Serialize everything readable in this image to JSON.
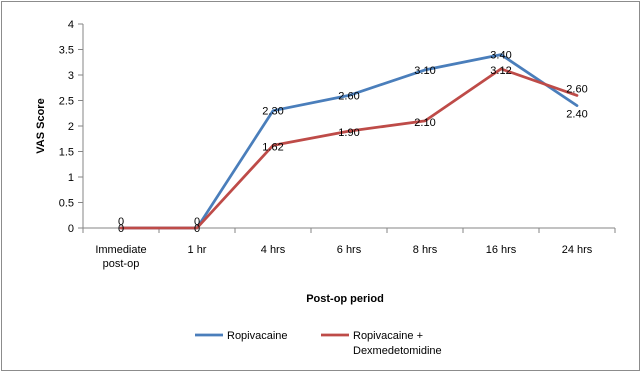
{
  "chart_data": {
    "type": "line",
    "categories": [
      [
        "Immediate",
        "post-op"
      ],
      [
        "1 hr"
      ],
      [
        "4 hrs"
      ],
      [
        "6 hrs"
      ],
      [
        "8 hrs"
      ],
      [
        "16 hrs"
      ],
      [
        "24 hrs"
      ]
    ],
    "series": [
      {
        "name": "Ropivacaine",
        "color": "#4A7EBB",
        "values": [
          0,
          0,
          2.3,
          2.6,
          3.1,
          3.4,
          2.4
        ],
        "labels": [
          "0",
          "0",
          "2.30",
          "2.60",
          "3.10",
          "3.40",
          "2.40"
        ]
      },
      {
        "name": "Ropivacaine + Dexmedetomidine",
        "legend_lines": [
          "Ropivacaine +",
          "Dexmedetomidine"
        ],
        "color": "#BE4B48",
        "values": [
          0,
          0,
          1.62,
          1.9,
          2.1,
          3.12,
          2.6
        ],
        "labels": [
          "0",
          "0",
          "1.62",
          "1.90",
          "2.10",
          "3.12",
          "2.60"
        ]
      }
    ],
    "xlabel": "Post-op period",
    "ylabel": "VAS Score",
    "ylim": [
      0,
      4
    ],
    "yticks": [
      "0",
      "0.5",
      "1",
      "1.5",
      "2",
      "2.5",
      "3",
      "3.5",
      "4"
    ],
    "ytick_values": [
      0,
      0.5,
      1,
      1.5,
      2,
      2.5,
      3,
      3.5,
      4
    ],
    "grid": false,
    "legend_position": "bottom"
  }
}
